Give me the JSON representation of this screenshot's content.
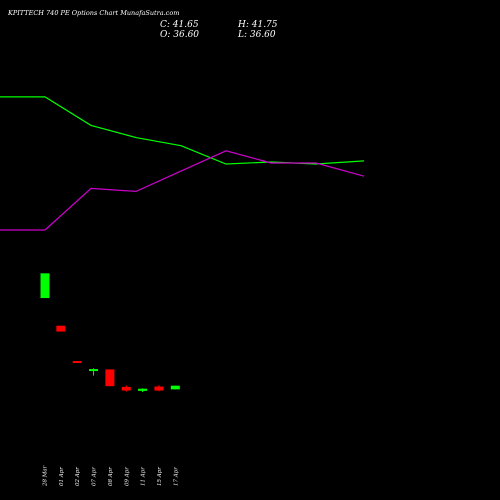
{
  "chart_data": {
    "type": "candlestick",
    "title": "KPITTECH 740 PE Options Chart MunafaSutra.com",
    "ohlc_readout": {
      "close": "C: 41.65",
      "high": "H: 41.75",
      "open": "O: 36.60",
      "low": "L: 36.60"
    },
    "dates": [
      "28 Mar",
      "01 Apr",
      "02 Apr",
      "07 Apr",
      "08 Apr",
      "09 Apr",
      "11 Apr",
      "15 Apr",
      "17 Apr"
    ],
    "candles": [
      {
        "date": "28 Mar",
        "open": null,
        "high": null,
        "low": null,
        "close": null
      },
      {
        "date": "01 Apr",
        "open": 124.0,
        "high": 124.0,
        "low": 116.0,
        "close": 116.0
      },
      {
        "date": "02 Apr",
        "open": 75.5,
        "high": 75.5,
        "low": 73.0,
        "close": 74.0
      },
      {
        "date": "07 Apr",
        "open": 63.0,
        "high": 65.5,
        "low": 55.5,
        "close": 64.5
      },
      {
        "date": "08 Apr",
        "open": 64.0,
        "high": 64.0,
        "low": 41.0,
        "close": 41.0
      },
      {
        "date": "09 Apr",
        "open": 40.0,
        "high": 42.0,
        "low": 33.5,
        "close": 35.0
      },
      {
        "date": "11 Apr",
        "open": 34.5,
        "high": 38.0,
        "low": 33.0,
        "close": 37.5
      },
      {
        "date": "15 Apr",
        "open": 40.5,
        "high": 42.5,
        "low": 34.0,
        "close": 35.0
      },
      {
        "date": "17 Apr",
        "open": 36.6,
        "high": 41.75,
        "low": 36.6,
        "close": 41.65
      }
    ],
    "first_bar": {
      "date": "28 Mar",
      "low": 162.0,
      "high": 196.0,
      "color": "#00ff00"
    },
    "price_scale": [
      22,
      228
    ],
    "lines": [
      {
        "color": "#00ff00",
        "values": [
          190,
          190,
          162,
          150,
          142,
          124,
          126,
          124,
          127
        ]
      },
      {
        "color": "#cc00cc",
        "values": [
          59,
          59,
          100,
          97,
          117,
          137,
          125,
          125,
          112
        ]
      }
    ],
    "line_scale": [
      0,
      246
    ],
    "colors": {
      "up": "#00ff00",
      "down": "#ff0000",
      "background": "#000000"
    }
  }
}
